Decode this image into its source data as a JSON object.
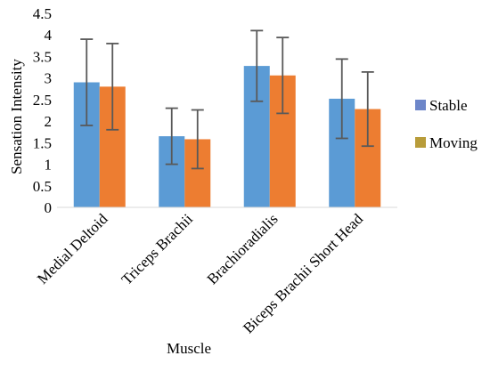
{
  "chart_data": {
    "type": "bar",
    "title": "",
    "xlabel": "Muscle",
    "ylabel": "Sensation Intensity",
    "ylim": [
      0,
      4.5
    ],
    "yticks": [
      "0",
      "0.5",
      "1",
      "1.5",
      "2",
      "2.5",
      "3",
      "3.5",
      "4",
      "4.5"
    ],
    "categories": [
      "Medial Deltoid",
      "Triceps Brachii",
      "Brachioradialis",
      "Biceps Brachii Short Head"
    ],
    "grid": false,
    "legend_position": "right",
    "series": [
      {
        "name": "Stable",
        "legend_color": "#6d86c9",
        "bar_color": "#5b9bd5",
        "values": [
          2.9,
          1.65,
          3.28,
          2.52
        ],
        "error": [
          1.0,
          0.65,
          0.82,
          0.92
        ]
      },
      {
        "name": "Moving",
        "legend_color": "#b89c3a",
        "bar_color": "#ed7d31",
        "values": [
          2.8,
          1.58,
          3.06,
          2.28
        ],
        "error": [
          1.0,
          0.68,
          0.88,
          0.86
        ]
      }
    ],
    "error_bar_color": "#595959"
  }
}
